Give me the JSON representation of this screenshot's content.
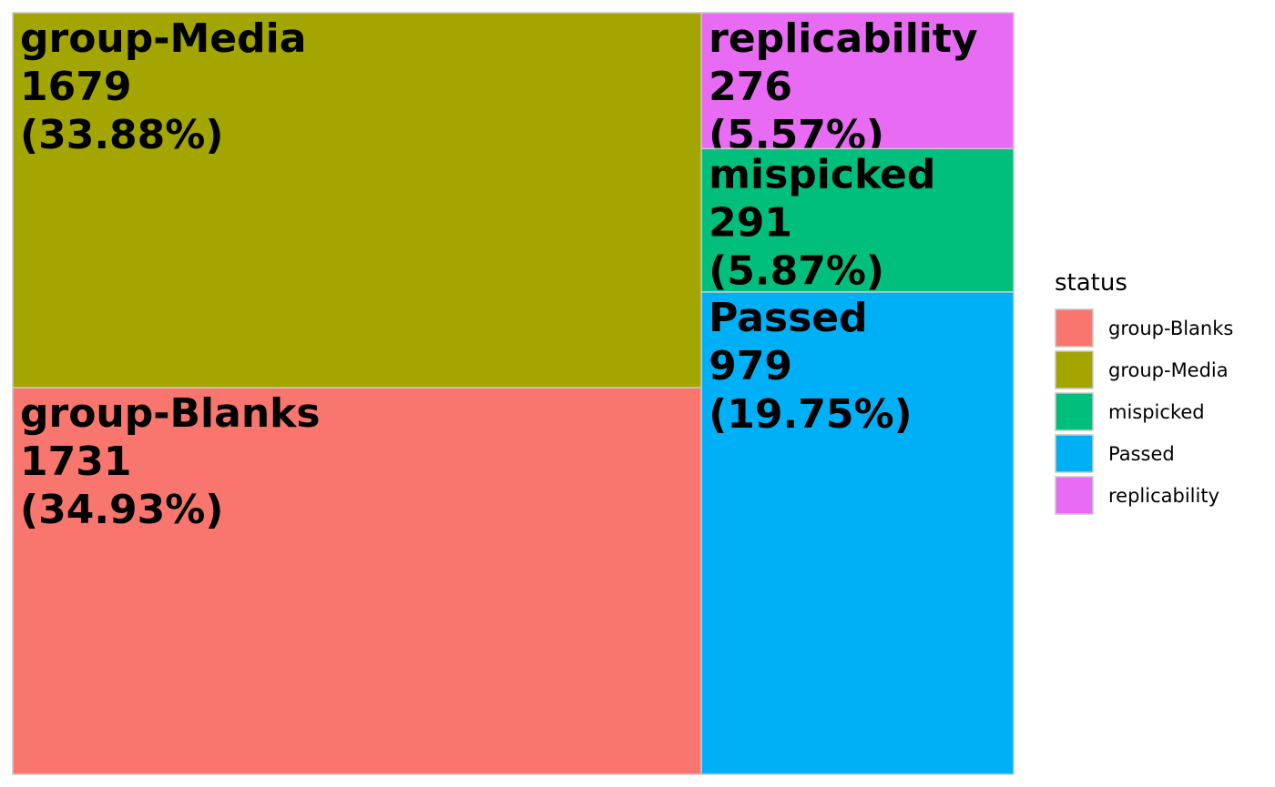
{
  "chart_data": {
    "type": "treemap",
    "title": "",
    "legend": {
      "title": "status",
      "position": "right"
    },
    "categories": [
      "group-Blanks",
      "group-Media",
      "mispicked",
      "Passed",
      "replicability"
    ],
    "colors": {
      "group-Blanks": "#F8766D",
      "group-Media": "#A3A500",
      "mispicked": "#00BF7D",
      "Passed": "#00B0F6",
      "replicability": "#E76BF3"
    },
    "tiles": [
      {
        "status": "group-Media",
        "count": 1679,
        "count_text": "1679",
        "percent_text": "(33.88%)"
      },
      {
        "status": "group-Blanks",
        "count": 1731,
        "count_text": "1731",
        "percent_text": "(34.93%)"
      },
      {
        "status": "replicability",
        "count": 276,
        "count_text": "276",
        "percent_text": "(5.57%)"
      },
      {
        "status": "mispicked",
        "count": 291,
        "count_text": "291",
        "percent_text": "(5.87%)"
      },
      {
        "status": "Passed",
        "count": 979,
        "count_text": "979",
        "percent_text": "(19.75%)"
      }
    ]
  }
}
